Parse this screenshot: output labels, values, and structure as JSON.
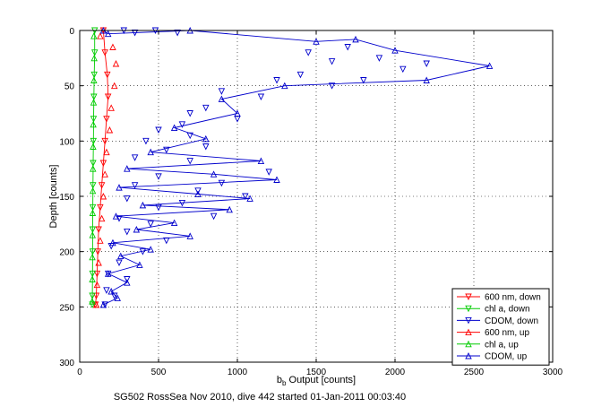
{
  "chart_data": {
    "type": "scatter",
    "xlabel_main": "b",
    "xlabel_sub": "b",
    "xlabel_rest": " Output [counts]",
    "ylabel": "Depth [counts]",
    "caption": "SG502 RossSea Nov 2010, dive 442 started 01-Jan-2011 00:03:40",
    "xlim": [
      0,
      3000
    ],
    "ylim": [
      0,
      300
    ],
    "y_reversed": true,
    "grid": "dotted",
    "legend_position": "bottom-right",
    "xticks": [
      0,
      500,
      1000,
      1500,
      2000,
      2500,
      3000
    ],
    "yticks": [
      0,
      50,
      100,
      150,
      200,
      250,
      300
    ],
    "series": [
      {
        "name": "600 nm, down",
        "color": "#ff0000",
        "marker": "triangle-down",
        "line": true,
        "points": [
          [
            150,
            0
          ],
          [
            160,
            20
          ],
          [
            175,
            40
          ],
          [
            180,
            60
          ],
          [
            170,
            80
          ],
          [
            160,
            100
          ],
          [
            150,
            120
          ],
          [
            140,
            140
          ],
          [
            130,
            160
          ],
          [
            120,
            180
          ],
          [
            115,
            200
          ],
          [
            110,
            220
          ],
          [
            105,
            240
          ],
          [
            100,
            248
          ]
        ]
      },
      {
        "name": "chl a, down",
        "color": "#00cc00",
        "marker": "triangle-down",
        "line": true,
        "points": [
          [
            95,
            0
          ],
          [
            95,
            20
          ],
          [
            92,
            40
          ],
          [
            90,
            60
          ],
          [
            88,
            80
          ],
          [
            87,
            100
          ],
          [
            85,
            120
          ],
          [
            84,
            140
          ],
          [
            83,
            160
          ],
          [
            82,
            180
          ],
          [
            82,
            200
          ],
          [
            81,
            220
          ],
          [
            80,
            240
          ],
          [
            80,
            248
          ]
        ]
      },
      {
        "name": "CDOM, down",
        "color": "#0000cc",
        "marker": "triangle-down",
        "line": false,
        "points": [
          [
            280,
            0
          ],
          [
            350,
            2
          ],
          [
            480,
            0
          ],
          [
            620,
            2
          ],
          [
            1450,
            20
          ],
          [
            1600,
            28
          ],
          [
            1700,
            15
          ],
          [
            1900,
            25
          ],
          [
            2050,
            35
          ],
          [
            2200,
            30
          ],
          [
            1400,
            40
          ],
          [
            1250,
            45
          ],
          [
            1600,
            50
          ],
          [
            1800,
            45
          ],
          [
            900,
            55
          ],
          [
            1150,
            60
          ],
          [
            800,
            70
          ],
          [
            700,
            75
          ],
          [
            1000,
            80
          ],
          [
            650,
            85
          ],
          [
            500,
            90
          ],
          [
            700,
            95
          ],
          [
            420,
            100
          ],
          [
            550,
            108
          ],
          [
            800,
            105
          ],
          [
            350,
            115
          ],
          [
            700,
            118
          ],
          [
            1200,
            128
          ],
          [
            500,
            132
          ],
          [
            900,
            138
          ],
          [
            350,
            140
          ],
          [
            750,
            145
          ],
          [
            1050,
            150
          ],
          [
            300,
            152
          ],
          [
            650,
            156
          ],
          [
            500,
            160
          ],
          [
            850,
            168
          ],
          [
            250,
            170
          ],
          [
            450,
            175
          ],
          [
            300,
            182
          ],
          [
            550,
            190
          ],
          [
            200,
            195
          ],
          [
            400,
            200
          ],
          [
            250,
            210
          ],
          [
            180,
            220
          ],
          [
            300,
            225
          ],
          [
            170,
            235
          ],
          [
            220,
            240
          ],
          [
            160,
            248
          ]
        ]
      },
      {
        "name": "600 nm, up",
        "color": "#ff0000",
        "marker": "triangle-up",
        "line": false,
        "points": [
          [
            130,
            5
          ],
          [
            210,
            15
          ],
          [
            230,
            30
          ],
          [
            220,
            50
          ],
          [
            200,
            70
          ],
          [
            190,
            90
          ],
          [
            170,
            110
          ],
          [
            160,
            130
          ],
          [
            150,
            150
          ],
          [
            140,
            170
          ],
          [
            130,
            190
          ],
          [
            120,
            210
          ],
          [
            110,
            230
          ],
          [
            105,
            248
          ]
        ]
      },
      {
        "name": "chl a, up",
        "color": "#00cc00",
        "marker": "triangle-up",
        "line": false,
        "points": [
          [
            90,
            5
          ],
          [
            92,
            25
          ],
          [
            90,
            45
          ],
          [
            88,
            65
          ],
          [
            86,
            85
          ],
          [
            85,
            105
          ],
          [
            84,
            125
          ],
          [
            83,
            145
          ],
          [
            82,
            165
          ],
          [
            81,
            185
          ],
          [
            80,
            205
          ],
          [
            80,
            225
          ],
          [
            79,
            245
          ]
        ]
      },
      {
        "name": "CDOM, up",
        "color": "#0000cc",
        "marker": "triangle-up",
        "line": true,
        "points": [
          [
            150,
            0
          ],
          [
            180,
            3
          ],
          [
            700,
            0
          ],
          [
            1500,
            10
          ],
          [
            1750,
            8
          ],
          [
            2000,
            18
          ],
          [
            2600,
            32
          ],
          [
            2200,
            45
          ],
          [
            1300,
            50
          ],
          [
            900,
            62
          ],
          [
            1000,
            75
          ],
          [
            600,
            88
          ],
          [
            800,
            98
          ],
          [
            450,
            110
          ],
          [
            1150,
            118
          ],
          [
            300,
            125
          ],
          [
            850,
            130
          ],
          [
            1250,
            135
          ],
          [
            250,
            142
          ],
          [
            750,
            148
          ],
          [
            1080,
            152
          ],
          [
            400,
            158
          ],
          [
            950,
            162
          ],
          [
            230,
            168
          ],
          [
            600,
            174
          ],
          [
            360,
            180
          ],
          [
            700,
            186
          ],
          [
            210,
            192
          ],
          [
            450,
            198
          ],
          [
            260,
            204
          ],
          [
            380,
            212
          ],
          [
            180,
            220
          ],
          [
            300,
            228
          ],
          [
            200,
            236
          ],
          [
            240,
            242
          ],
          [
            150,
            248
          ]
        ]
      }
    ]
  }
}
